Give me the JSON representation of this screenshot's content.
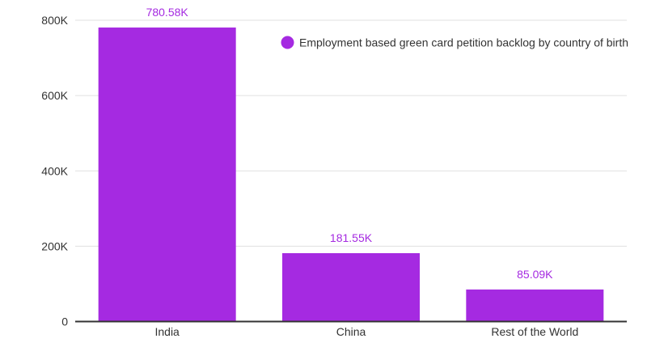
{
  "chart_data": {
    "type": "bar",
    "categories": [
      "India",
      "China",
      "Rest of the World"
    ],
    "series": [
      {
        "name": "Employment based green card petition backlog by country of birth",
        "values": [
          780580,
          181550,
          85090
        ],
        "labels": [
          "780.58K",
          "181.55K",
          "85.09K"
        ]
      }
    ],
    "ylim": [
      0,
      800000
    ],
    "yticks": [
      0,
      200000,
      400000,
      600000,
      800000
    ],
    "ytick_labels": [
      "0",
      "200K",
      "400K",
      "600K",
      "800K"
    ],
    "grid": true,
    "legend_position": "top-right",
    "colors": {
      "bar": "#a52ae1",
      "label": "#a52ae1",
      "grid": "#e0e0e0",
      "axis": "#333333"
    }
  }
}
